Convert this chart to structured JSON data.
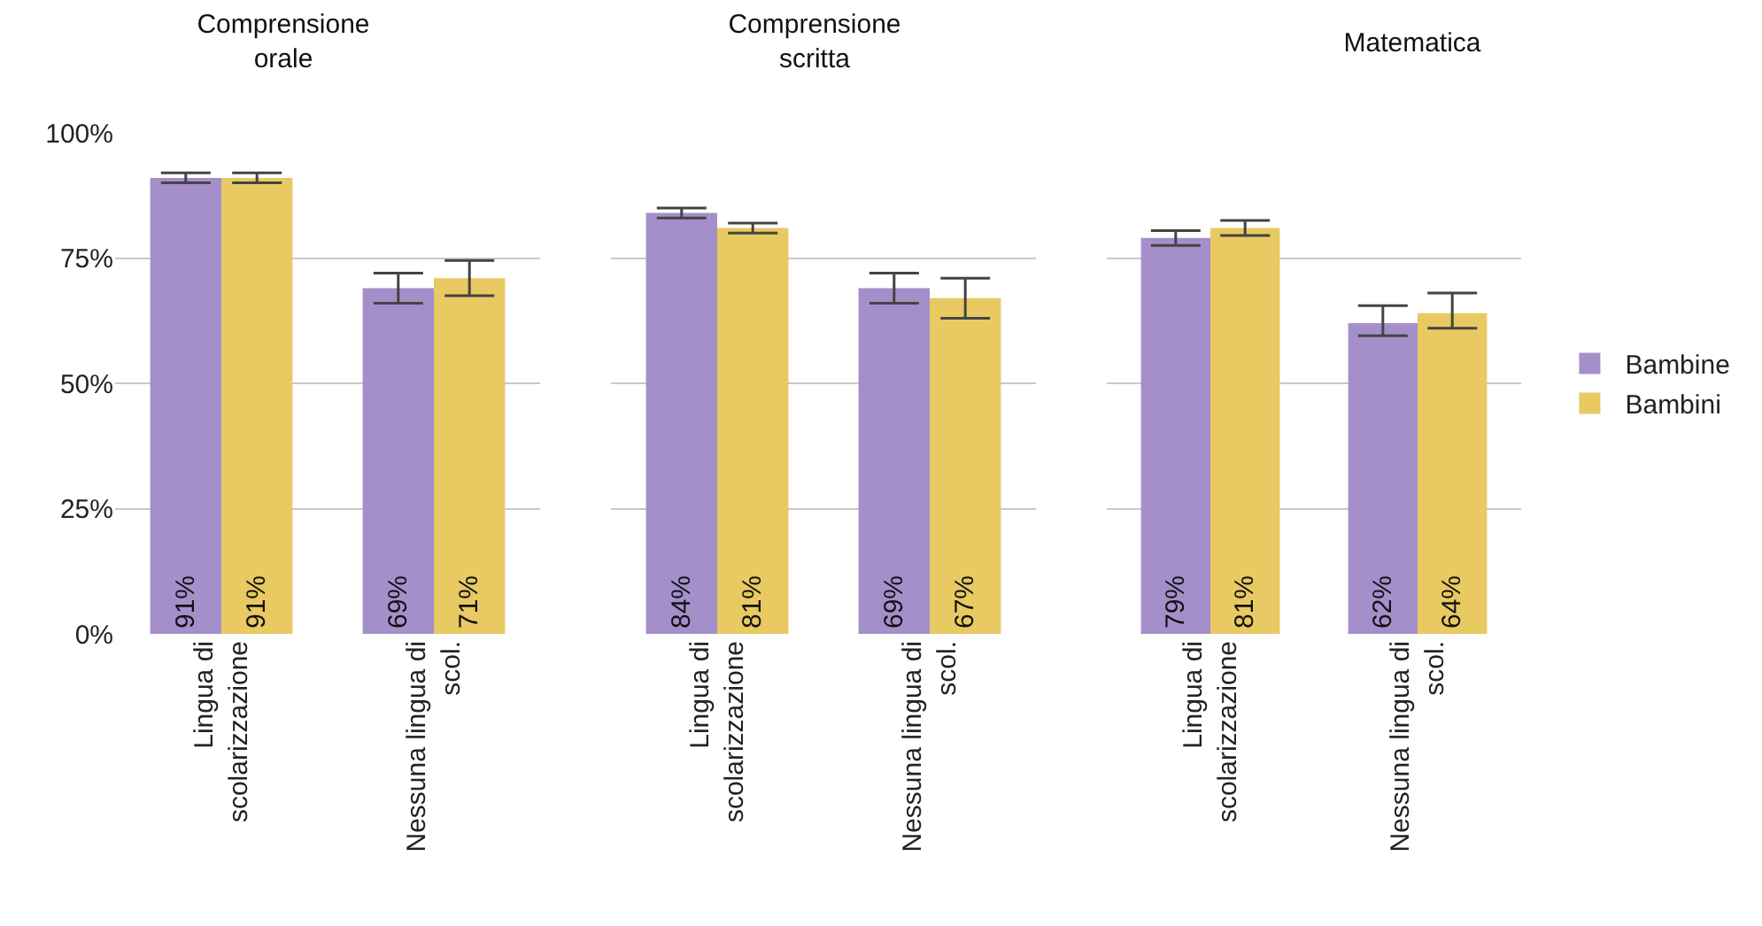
{
  "chart_data": [
    {
      "type": "bar",
      "title": "Comprensione orale",
      "categories": [
        "Lingua di scolarizzazione",
        "Nessuna lingua di scol."
      ],
      "series": [
        {
          "color": "#a48fcb",
          "values": [
            91,
            69
          ],
          "value_labels": [
            "91%",
            "69%"
          ],
          "errors": [
            [
              90,
              92
            ],
            [
              66,
              72
            ]
          ]
        },
        {
          "color": "#e8c962",
          "values": [
            91,
            71
          ],
          "value_labels": [
            "91%",
            "71%"
          ],
          "errors": [
            [
              90,
              92
            ],
            [
              67.5,
              74.5
            ]
          ]
        }
      ],
      "ylim": [
        0,
        100
      ],
      "yticks": [
        {
          "value": 0,
          "label": "0%"
        },
        {
          "value": 25,
          "label": "25%"
        },
        {
          "value": 50,
          "label": "50%"
        },
        {
          "value": 75,
          "label": "75%"
        },
        {
          "value": 100,
          "label": "100%"
        }
      ],
      "grid": "y",
      "legend": false
    },
    {
      "type": "bar",
      "title": "Comprensione scritta",
      "categories": [
        "Lingua di scolarizzazione",
        "Nessuna lingua di scol."
      ],
      "series": [
        {
          "color": "#a48fcb",
          "values": [
            84,
            69
          ],
          "value_labels": [
            "84%",
            "69%"
          ],
          "errors": [
            [
              83,
              85
            ],
            [
              66,
              72
            ]
          ]
        },
        {
          "color": "#e8c962",
          "values": [
            81,
            67
          ],
          "value_labels": [
            "81%",
            "67%"
          ],
          "errors": [
            [
              80,
              82
            ],
            [
              63,
              71
            ]
          ]
        }
      ],
      "ylim": [
        0,
        100
      ],
      "yticks": [
        0,
        25,
        50,
        75,
        100
      ],
      "grid": "y",
      "legend": false,
      "tick_labels": "x"
    },
    {
      "type": "bar",
      "title": "Matematica",
      "categories": [
        "Lingua di scolarizzazione",
        "Nessuna lingua di scol."
      ],
      "series": [
        {
          "name": "Bambine",
          "color": "#a48fcb",
          "values": [
            79,
            62
          ],
          "value_labels": [
            "79%",
            "62%"
          ],
          "errors": [
            [
              77.5,
              80.5
            ],
            [
              59.5,
              65.5
            ]
          ]
        },
        {
          "name": "Bambini",
          "color": "#e8c962",
          "values": [
            81,
            64
          ],
          "value_labels": [
            "81%",
            "64%"
          ],
          "errors": [
            [
              79.5,
              82.5
            ],
            [
              61,
              68
            ]
          ]
        }
      ],
      "ylim": [
        0,
        100
      ],
      "yticks": [
        0,
        25,
        50,
        75,
        100
      ],
      "grid": "y",
      "legend": "right",
      "tick_labels": "x"
    }
  ]
}
